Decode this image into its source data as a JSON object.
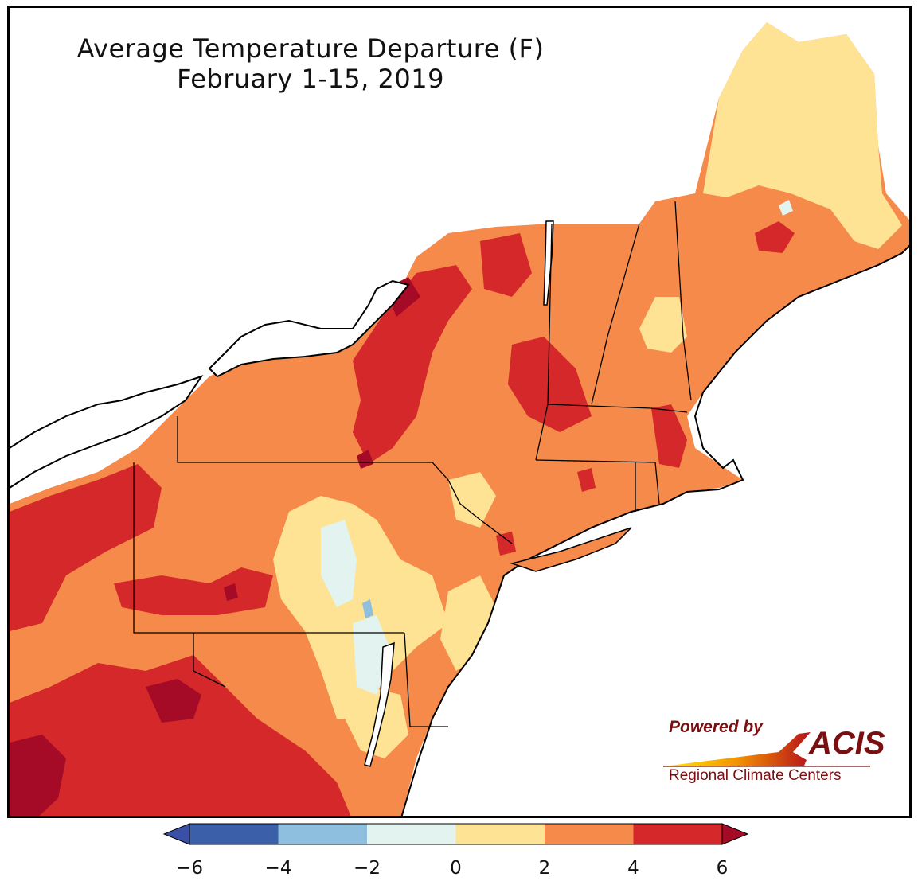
{
  "map": {
    "title": "Average Temperature Departure (F)",
    "subtitle": "February 1-15, 2019",
    "region": "Northeast United States"
  },
  "legend": {
    "ticks": [
      "−6",
      "−4",
      "−2",
      "0",
      "2",
      "4",
      "6"
    ],
    "bins": [
      {
        "range": [
          -6,
          -4
        ],
        "color": "#3b5fa8"
      },
      {
        "range": [
          -4,
          -2
        ],
        "color": "#8fbfdf"
      },
      {
        "range": [
          -2,
          0
        ],
        "color": "#e3f3ef"
      },
      {
        "range": [
          0,
          2
        ],
        "color": "#fde393"
      },
      {
        "range": [
          2,
          4
        ],
        "color": "#f58a4a"
      },
      {
        "range": [
          4,
          6
        ],
        "color": "#d4282b"
      }
    ],
    "under_color": "#3a4fa6",
    "over_color": "#a50a26",
    "extend": "both"
  },
  "colors": {
    "water": "#ffffff",
    "state_border": "#000000",
    "county_border": "#8a8a8a"
  },
  "logo": {
    "powered_by": "Powered by",
    "name": "ACIS",
    "subtitle": "Regional Climate Centers"
  }
}
